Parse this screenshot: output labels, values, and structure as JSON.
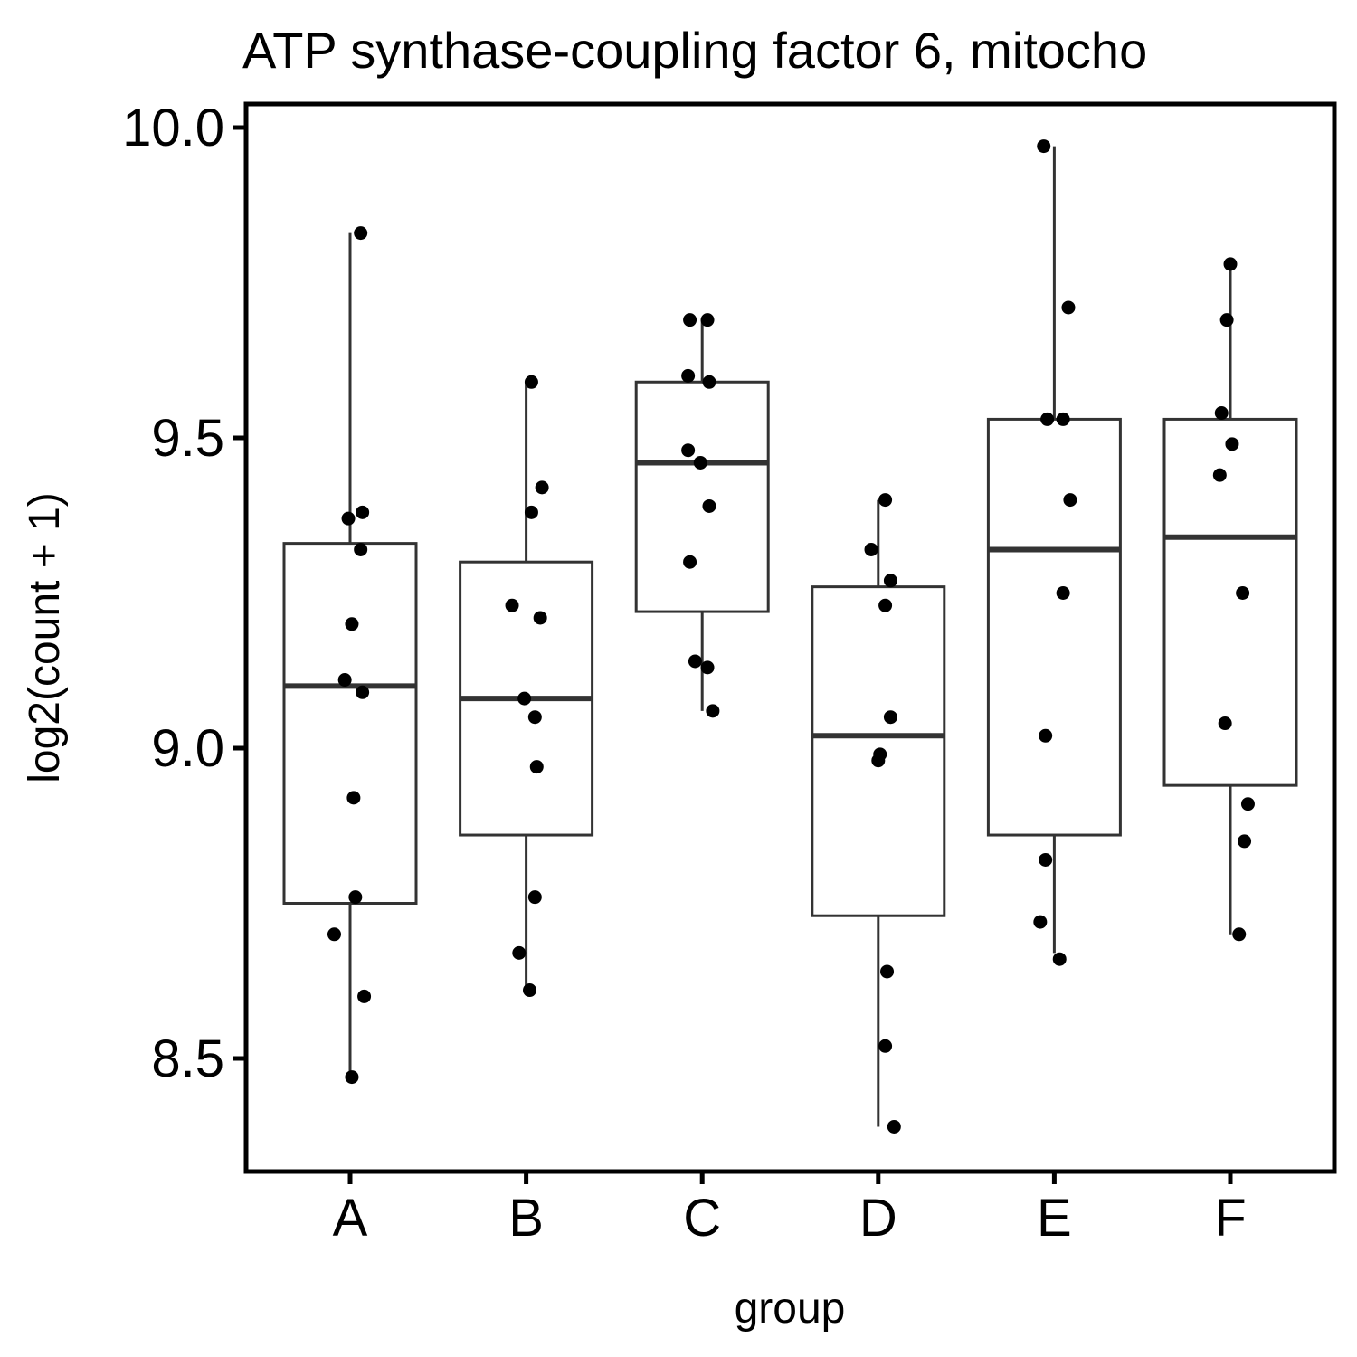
{
  "chart_data": {
    "type": "boxplot",
    "title": "ATP synthase-coupling factor 6, mitocho",
    "xlabel": "group",
    "ylabel": "log2(count + 1)",
    "ylim": [
      8.32,
      10.04
    ],
    "yticks": [
      8.5,
      9.0,
      9.5,
      10.0
    ],
    "ytick_labels": [
      "8.5",
      "9.0",
      "9.5",
      "10.0"
    ],
    "categories": [
      "A",
      "B",
      "C",
      "D",
      "E",
      "F"
    ],
    "grid": false,
    "legend": "none",
    "boxes": [
      {
        "group": "A",
        "whisker_low": 8.47,
        "q1": 8.75,
        "median": 9.1,
        "q3": 9.33,
        "whisker_high": 9.83
      },
      {
        "group": "B",
        "whisker_low": 8.61,
        "q1": 8.86,
        "median": 9.08,
        "q3": 9.3,
        "whisker_high": 9.59
      },
      {
        "group": "C",
        "whisker_low": 9.06,
        "q1": 9.22,
        "median": 9.46,
        "q3": 9.59,
        "whisker_high": 9.69
      },
      {
        "group": "D",
        "whisker_low": 8.39,
        "q1": 8.73,
        "median": 9.02,
        "q3": 9.26,
        "whisker_high": 9.4
      },
      {
        "group": "E",
        "whisker_low": 8.67,
        "q1": 8.86,
        "median": 9.32,
        "q3": 9.53,
        "whisker_high": 9.97
      },
      {
        "group": "F",
        "whisker_low": 8.7,
        "q1": 8.94,
        "median": 9.34,
        "q3": 9.53,
        "whisker_high": 9.78
      }
    ],
    "points": [
      {
        "group": "A",
        "jitter": 0.06,
        "y": 9.83
      },
      {
        "group": "A",
        "jitter": -0.01,
        "y": 9.37
      },
      {
        "group": "A",
        "jitter": 0.07,
        "y": 9.38
      },
      {
        "group": "A",
        "jitter": 0.06,
        "y": 9.32
      },
      {
        "group": "A",
        "jitter": 0.01,
        "y": 9.2
      },
      {
        "group": "A",
        "jitter": -0.03,
        "y": 9.11
      },
      {
        "group": "A",
        "jitter": 0.07,
        "y": 9.09
      },
      {
        "group": "A",
        "jitter": 0.02,
        "y": 8.92
      },
      {
        "group": "A",
        "jitter": 0.03,
        "y": 8.76
      },
      {
        "group": "A",
        "jitter": -0.09,
        "y": 8.7
      },
      {
        "group": "A",
        "jitter": 0.08,
        "y": 8.6
      },
      {
        "group": "A",
        "jitter": 0.01,
        "y": 8.47
      },
      {
        "group": "B",
        "jitter": 0.03,
        "y": 9.59
      },
      {
        "group": "B",
        "jitter": 0.09,
        "y": 9.42
      },
      {
        "group": "B",
        "jitter": 0.03,
        "y": 9.38
      },
      {
        "group": "B",
        "jitter": -0.08,
        "y": 9.23
      },
      {
        "group": "B",
        "jitter": 0.08,
        "y": 9.21
      },
      {
        "group": "B",
        "jitter": -0.01,
        "y": 9.08
      },
      {
        "group": "B",
        "jitter": 0.05,
        "y": 9.05
      },
      {
        "group": "B",
        "jitter": 0.06,
        "y": 8.97
      },
      {
        "group": "B",
        "jitter": 0.05,
        "y": 8.76
      },
      {
        "group": "B",
        "jitter": -0.04,
        "y": 8.67
      },
      {
        "group": "B",
        "jitter": 0.02,
        "y": 8.61
      },
      {
        "group": "C",
        "jitter": -0.07,
        "y": 9.69
      },
      {
        "group": "C",
        "jitter": 0.03,
        "y": 9.69
      },
      {
        "group": "C",
        "jitter": -0.08,
        "y": 9.6
      },
      {
        "group": "C",
        "jitter": 0.04,
        "y": 9.59
      },
      {
        "group": "C",
        "jitter": -0.08,
        "y": 9.48
      },
      {
        "group": "C",
        "jitter": -0.01,
        "y": 9.46
      },
      {
        "group": "C",
        "jitter": 0.04,
        "y": 9.39
      },
      {
        "group": "C",
        "jitter": -0.07,
        "y": 9.3
      },
      {
        "group": "C",
        "jitter": -0.04,
        "y": 9.14
      },
      {
        "group": "C",
        "jitter": 0.03,
        "y": 9.13
      },
      {
        "group": "C",
        "jitter": 0.06,
        "y": 9.06
      },
      {
        "group": "D",
        "jitter": 0.04,
        "y": 9.4
      },
      {
        "group": "D",
        "jitter": -0.04,
        "y": 9.32
      },
      {
        "group": "D",
        "jitter": 0.07,
        "y": 9.27
      },
      {
        "group": "D",
        "jitter": 0.04,
        "y": 9.23
      },
      {
        "group": "D",
        "jitter": 0.07,
        "y": 9.05
      },
      {
        "group": "D",
        "jitter": 0.01,
        "y": 8.99
      },
      {
        "group": "D",
        "jitter": 0.0,
        "y": 8.98
      },
      {
        "group": "D",
        "jitter": 0.05,
        "y": 8.64
      },
      {
        "group": "D",
        "jitter": 0.04,
        "y": 8.52
      },
      {
        "group": "D",
        "jitter": 0.09,
        "y": 8.39
      },
      {
        "group": "E",
        "jitter": -0.06,
        "y": 9.97
      },
      {
        "group": "E",
        "jitter": 0.08,
        "y": 9.71
      },
      {
        "group": "E",
        "jitter": -0.04,
        "y": 9.53
      },
      {
        "group": "E",
        "jitter": 0.05,
        "y": 9.53
      },
      {
        "group": "E",
        "jitter": 0.09,
        "y": 9.4
      },
      {
        "group": "E",
        "jitter": 0.05,
        "y": 9.25
      },
      {
        "group": "E",
        "jitter": -0.05,
        "y": 9.02
      },
      {
        "group": "E",
        "jitter": -0.05,
        "y": 8.82
      },
      {
        "group": "E",
        "jitter": -0.08,
        "y": 8.72
      },
      {
        "group": "E",
        "jitter": 0.03,
        "y": 8.66
      },
      {
        "group": "F",
        "jitter": 0.0,
        "y": 9.78
      },
      {
        "group": "F",
        "jitter": -0.02,
        "y": 9.69
      },
      {
        "group": "F",
        "jitter": -0.05,
        "y": 9.54
      },
      {
        "group": "F",
        "jitter": 0.01,
        "y": 9.49
      },
      {
        "group": "F",
        "jitter": -0.06,
        "y": 9.44
      },
      {
        "group": "F",
        "jitter": 0.07,
        "y": 9.25
      },
      {
        "group": "F",
        "jitter": -0.03,
        "y": 9.04
      },
      {
        "group": "F",
        "jitter": 0.1,
        "y": 8.91
      },
      {
        "group": "F",
        "jitter": 0.08,
        "y": 8.85
      },
      {
        "group": "F",
        "jitter": 0.05,
        "y": 8.7
      }
    ]
  }
}
